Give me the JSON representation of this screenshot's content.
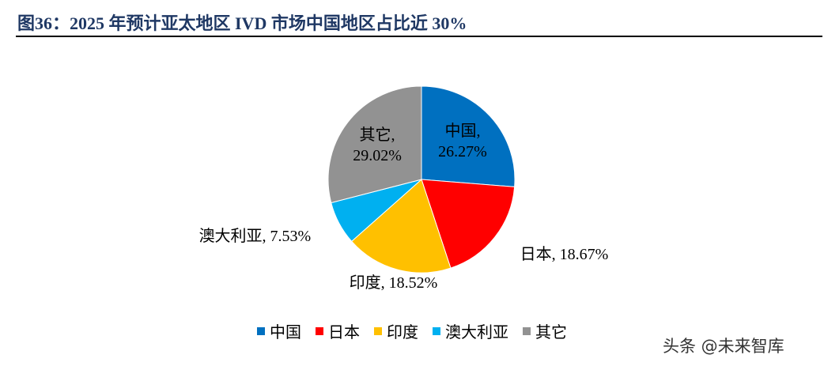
{
  "chart_data": {
    "type": "pie",
    "title": "图36：2025 年预计亚太地区 IVD 市场中国地区占比近 30%",
    "categories": [
      "中国",
      "日本",
      "印度",
      "澳大利亚",
      "其它"
    ],
    "values": [
      26.27,
      18.67,
      18.52,
      7.53,
      29.02
    ],
    "value_labels": [
      "中国, 26.27%",
      "日本, 18.67%",
      "印度, 18.52%",
      "澳大利亚, 7.53%",
      "其它, 29.02%"
    ],
    "colors": [
      "#0070c0",
      "#ff0000",
      "#ffc000",
      "#00b0f0",
      "#929292"
    ],
    "legend": "bottom"
  },
  "watermark": "头条 @未来智库"
}
